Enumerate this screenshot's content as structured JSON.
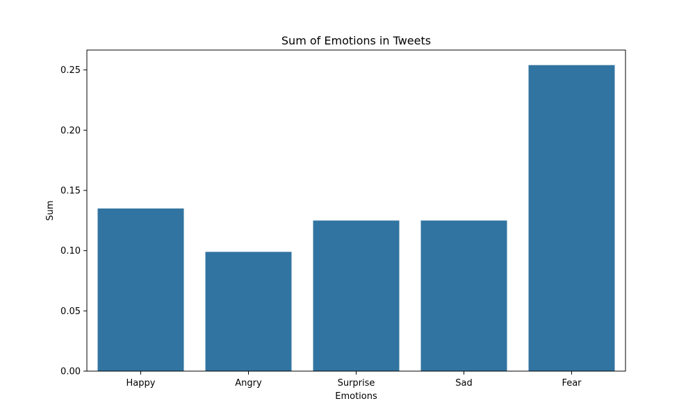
{
  "chart_data": {
    "type": "bar",
    "title": "Sum of Emotions in Tweets",
    "xlabel": "Emotions",
    "ylabel": "Sum",
    "categories": [
      "Happy",
      "Angry",
      "Surprise",
      "Sad",
      "Fear"
    ],
    "values": [
      0.135,
      0.099,
      0.125,
      0.125,
      0.254
    ],
    "ylim": [
      0,
      0.2665
    ],
    "yticks": [
      0,
      0.05,
      0.1,
      0.15,
      0.2,
      0.25
    ],
    "ytick_labels": [
      "0.00",
      "0.05",
      "0.10",
      "0.15",
      "0.20",
      "0.25"
    ],
    "bar_color": "#3274a1",
    "grid": false,
    "legend": "none"
  }
}
